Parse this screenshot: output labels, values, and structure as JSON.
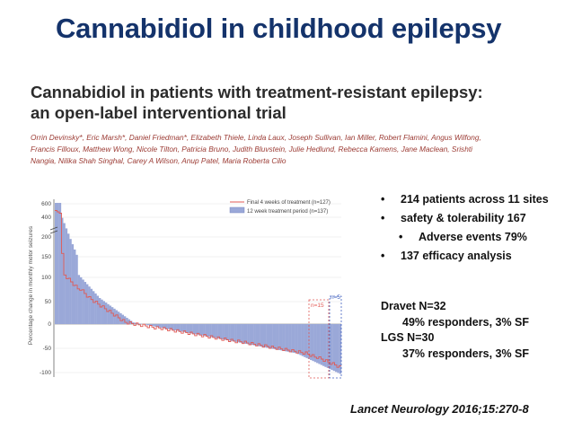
{
  "slide": {
    "title": "Cannabidiol in childhood epilepsy",
    "citation": "Lancet Neurology 2016;15:270-8"
  },
  "paper": {
    "title_line1": "Cannabidiol in patients with treatment-resistant epilepsy:",
    "title_line2": "an open-label interventional trial",
    "authors": "Orrin Devinsky*, Eric Marsh*, Daniel Friedman*, Elizabeth Thiele, Linda Laux, Joseph Sullivan, Ian Miller, Robert Flamini, Angus Wilfong, Francis Filloux, Matthew Wong, Nicole Tilton, Patricia Bruno, Judith Bluvstein, Julie Hedlund, Rebecca Kamens, Jane Maclean, Srishti Nangia, Nilika Shah Singhal, Carey A Wilson, Anup Patel, Maria Roberta Cilio"
  },
  "bullets": [
    {
      "text": "214 patients across 11 sites",
      "level": 1
    },
    {
      "text": "safety & tolerability   167",
      "level": 1
    },
    {
      "text": "Adverse events 79%",
      "level": 2
    },
    {
      "text": "137 efficacy analysis",
      "level": 1
    }
  ],
  "stats": {
    "dravet_label": "Dravet N=32",
    "dravet_result": "49% responders, 3% SF",
    "lgs_label": "LGS N=30",
    "lgs_result": "37% responders, 3% SF"
  },
  "colors": {
    "title": "#14336b",
    "bars": "#9aa8d8",
    "line": "#e05a55",
    "authors": "#9b3a33"
  },
  "chart_data": {
    "type": "bar",
    "ylabel": "Percentage change in monthly motor seizures",
    "yticks": [
      "600",
      "400",
      "200",
      "150",
      "100",
      "50",
      "0",
      "-50",
      "-100"
    ],
    "legend": [
      "Final 4 weeks of treatment (n=127)",
      "12 week treatment period (n=137)"
    ],
    "legend_position": "top-right",
    "annotations": [
      "n=15",
      "n=5"
    ],
    "series": [
      {
        "name": "12 week treatment period (n=137)",
        "kind": "bar",
        "n": 137
      },
      {
        "name": "Final 4 weeks of treatment (n=127)",
        "kind": "line",
        "n": 127
      }
    ]
  }
}
